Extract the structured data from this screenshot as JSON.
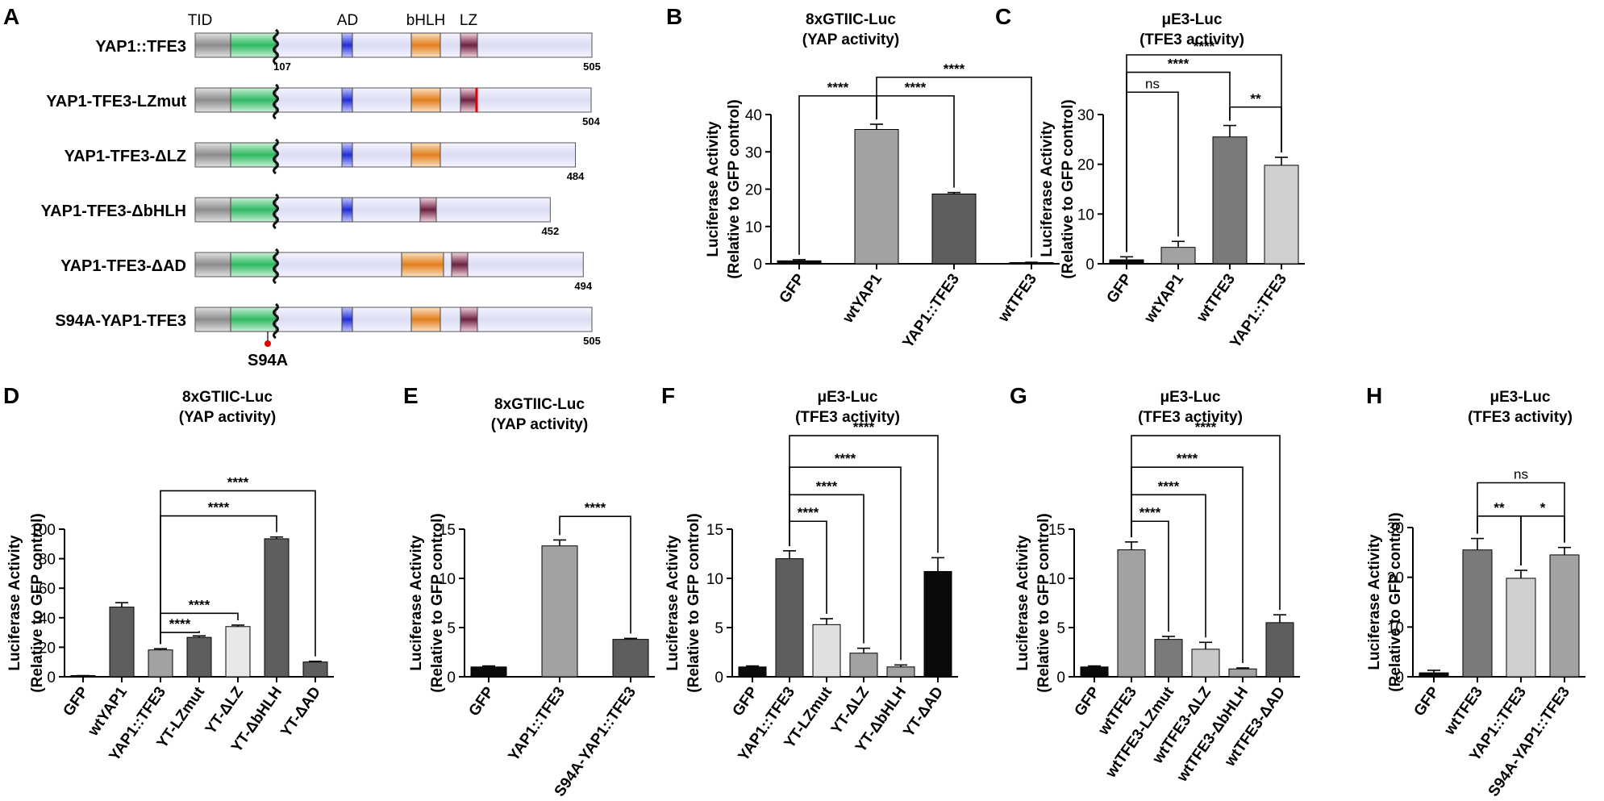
{
  "domain_areas": [
    {
      "name": "TID",
      "color": "#3cc06a"
    },
    {
      "name": "AD",
      "color": "#2a36d8"
    },
    {
      "name": "bHLH",
      "color": "#e08a2c"
    },
    {
      "name": "LZ",
      "color": "#7a2a4a"
    }
  ],
  "constructs_panel": {
    "letter": "A",
    "domain_headers": [
      "TID",
      "AD",
      "bHLH",
      "LZ"
    ],
    "mutation_label": "S94A",
    "breakpoint_label": "107",
    "constructs": [
      {
        "name": "YAP1::TFE3",
        "length": 505,
        "domains": [
          "TID",
          "AD",
          "bHLH",
          "LZ"
        ],
        "lz_mutated": false
      },
      {
        "name": "YAP1-TFE3-LZmut",
        "length": 504,
        "domains": [
          "TID",
          "AD",
          "bHLH",
          "LZ"
        ],
        "lz_mutated": true
      },
      {
        "name": "YAP1-TFE3-ΔLZ",
        "length": 484,
        "domains": [
          "TID",
          "AD",
          "bHLH"
        ],
        "lz_mutated": false
      },
      {
        "name": "YAP1-TFE3-ΔbHLH",
        "length": 452,
        "domains": [
          "TID",
          "AD",
          "LZ"
        ],
        "lz_mutated": false
      },
      {
        "name": "YAP1-TFE3-ΔAD",
        "length": 494,
        "domains": [
          "TID",
          "bHLH",
          "LZ"
        ],
        "lz_mutated": false
      },
      {
        "name": "S94A-YAP1-TFE3",
        "length": 505,
        "domains": [
          "TID",
          "AD",
          "bHLH",
          "LZ"
        ],
        "lz_mutated": false
      }
    ]
  },
  "chart_data": [
    {
      "id": "B",
      "letter": "B",
      "type": "bar",
      "title": [
        "8xGTIIC-Luc",
        "(YAP activity)"
      ],
      "ylabel": [
        "Luciferase Activity",
        "(Relative to GFP control)"
      ],
      "ylim": [
        0,
        40
      ],
      "yticks": [
        0,
        10,
        20,
        30,
        40
      ],
      "categories": [
        "GFP",
        "wtYAP1",
        "YAP1::TFE3",
        "wtTFE3"
      ],
      "values": [
        0.8,
        36.0,
        18.7,
        0.3
      ],
      "errors": [
        0.3,
        1.4,
        0.4,
        0.1
      ],
      "colors": [
        "#0a0a0a",
        "#a2a2a2",
        "#5e5e5e",
        "#0a0a0a"
      ],
      "significance": [
        {
          "from": 1,
          "to": 2,
          "label": "****",
          "y": 45
        },
        {
          "from": 0,
          "to": 1,
          "label": "****",
          "y": 45
        },
        {
          "from": 1,
          "to": 3,
          "label": "****",
          "y": 50
        }
      ]
    },
    {
      "id": "C",
      "letter": "C",
      "type": "bar",
      "title": [
        "μE3-Luc",
        "(TFE3 activity)"
      ],
      "ylabel": [
        "Luciferase Activity",
        "(Relative to GFP control)"
      ],
      "ylim": [
        0,
        30
      ],
      "yticks": [
        0,
        10,
        20,
        30
      ],
      "categories": [
        "GFP",
        "wtYAP1",
        "wtTFE3",
        "YAP1::TFE3"
      ],
      "values": [
        0.8,
        3.3,
        25.5,
        19.8
      ],
      "errors": [
        0.6,
        1.2,
        2.3,
        1.6
      ],
      "colors": [
        "#0a0a0a",
        "#a2a2a2",
        "#7a7a7a",
        "#cfcfcf"
      ],
      "significance": [
        {
          "from": 2,
          "to": 3,
          "label": "**",
          "y": 31.5
        },
        {
          "from": 0,
          "to": 1,
          "label": "ns",
          "y": 34.5
        },
        {
          "from": 0,
          "to": 2,
          "label": "****",
          "y": 38.5
        },
        {
          "from": 0,
          "to": 3,
          "label": "****",
          "y": 42
        }
      ]
    },
    {
      "id": "D",
      "letter": "D",
      "type": "bar",
      "title": [
        "8xGTIIC-Luc",
        "(YAP activity)"
      ],
      "ylabel": [
        "Luciferase Activity",
        "(Relative to GFP control)"
      ],
      "ylim": [
        0,
        100
      ],
      "yticks": [
        0,
        20,
        40,
        60,
        80,
        100
      ],
      "categories": [
        "GFP",
        "wtYAP1",
        "YAP1::TFE3",
        "YT-LZmut",
        "YT-ΔLZ",
        "YT-ΔbHLH",
        "YT-ΔAD"
      ],
      "values": [
        0.5,
        47.2,
        18.2,
        26.7,
        34.0,
        93.5,
        10.0
      ],
      "errors": [
        0.3,
        3.0,
        0.8,
        1.0,
        1.0,
        1.2,
        0.5
      ],
      "colors": [
        "#0a0a0a",
        "#5e5e5e",
        "#a2a2a2",
        "#5e5e5e",
        "#e8e8e8",
        "#5e5e5e",
        "#5e5e5e"
      ],
      "significance": [
        {
          "from": 2,
          "to": 3,
          "label": "****",
          "y": 30
        },
        {
          "from": 2,
          "to": 4,
          "label": "****",
          "y": 43
        },
        {
          "from": 2,
          "to": 5,
          "label": "****",
          "y": 109
        },
        {
          "from": 2,
          "to": 6,
          "label": "****",
          "y": 126
        }
      ]
    },
    {
      "id": "E",
      "letter": "E",
      "type": "bar",
      "title": [
        "8xGTIIC-Luc",
        "(YAP activity)"
      ],
      "ylabel": [
        "Luciferase Activity",
        "(Relative to GFP control)"
      ],
      "ylim": [
        0,
        15
      ],
      "yticks": [
        0,
        5,
        10,
        15
      ],
      "categories": [
        "GFP",
        "YAP1::TFE3",
        "S94A-YAP1::TFE3"
      ],
      "values": [
        1.0,
        13.3,
        3.8
      ],
      "errors": [
        0.1,
        0.6,
        0.1
      ],
      "colors": [
        "#0a0a0a",
        "#a2a2a2",
        "#5e5e5e"
      ],
      "significance": [
        {
          "from": 1,
          "to": 2,
          "label": "****",
          "y": 16.3
        }
      ]
    },
    {
      "id": "F",
      "letter": "F",
      "type": "bar",
      "title": [
        "μE3-Luc",
        "(TFE3 activity)"
      ],
      "ylabel": [
        "Luciferase Activity",
        "(Relative to GFP control)"
      ],
      "ylim": [
        0,
        15
      ],
      "yticks": [
        0,
        5,
        10,
        15
      ],
      "categories": [
        "GFP",
        "YAP1::TFE3",
        "YT-LZmut",
        "YT-ΔLZ",
        "YT-ΔbHLH",
        "YT-ΔAD"
      ],
      "values": [
        1.0,
        12.0,
        5.3,
        2.4,
        1.0,
        10.7
      ],
      "errors": [
        0.1,
        0.8,
        0.6,
        0.5,
        0.2,
        1.4
      ],
      "colors": [
        "#0a0a0a",
        "#5e5e5e",
        "#e0e0e0",
        "#a2a2a2",
        "#a2a2a2",
        "#0a0a0a"
      ],
      "significance": [
        {
          "from": 1,
          "to": 2,
          "label": "****",
          "y": 15.8
        },
        {
          "from": 1,
          "to": 3,
          "label": "****",
          "y": 18.5
        },
        {
          "from": 1,
          "to": 4,
          "label": "****",
          "y": 21.3
        },
        {
          "from": 1,
          "to": 5,
          "label": "****",
          "y": 24.5
        }
      ]
    },
    {
      "id": "G",
      "letter": "G",
      "type": "bar",
      "title": [
        "μE3-Luc",
        "(TFE3 activity)"
      ],
      "ylabel": [
        "Luciferase Activity",
        "(Relative to GFP control)"
      ],
      "ylim": [
        0,
        15
      ],
      "yticks": [
        0,
        5,
        10,
        15
      ],
      "categories": [
        "GFP",
        "wtTFE3",
        "wtTFE3-LZmut",
        "wtTFE3-ΔLZ",
        "wtTFE3-ΔbHLH",
        "wtTFE3-ΔAD"
      ],
      "values": [
        1.0,
        12.9,
        3.8,
        2.8,
        0.8,
        5.5
      ],
      "errors": [
        0.1,
        0.8,
        0.3,
        0.7,
        0.1,
        0.8
      ],
      "colors": [
        "#0a0a0a",
        "#a2a2a2",
        "#7a7a7a",
        "#c8c8c8",
        "#a2a2a2",
        "#5e5e5e"
      ],
      "significance": [
        {
          "from": 1,
          "to": 2,
          "label": "****",
          "y": 15.8
        },
        {
          "from": 1,
          "to": 3,
          "label": "****",
          "y": 18.5
        },
        {
          "from": 1,
          "to": 4,
          "label": "****",
          "y": 21.3
        },
        {
          "from": 1,
          "to": 5,
          "label": "****",
          "y": 24.5
        }
      ]
    },
    {
      "id": "H",
      "letter": "H",
      "type": "bar",
      "title": [
        "μE3-Luc",
        "(TFE3 activity)"
      ],
      "ylabel": [
        "Luciferase Activity",
        "(Relative to GFP control)"
      ],
      "ylim": [
        0,
        30
      ],
      "yticks": [
        0,
        10,
        20,
        30
      ],
      "categories": [
        "GFP",
        "wtTFE3",
        "YAP1::TFE3",
        "S94A-YAP1::TFE3"
      ],
      "values": [
        0.8,
        25.5,
        19.8,
        24.5
      ],
      "errors": [
        0.5,
        2.3,
        1.6,
        1.5
      ],
      "colors": [
        "#0a0a0a",
        "#7a7a7a",
        "#cfcfcf",
        "#a2a2a2"
      ],
      "significance": [
        {
          "from": 1,
          "to": 2,
          "label": "**",
          "y": 32.3
        },
        {
          "from": 2,
          "to": 3,
          "label": "*",
          "y": 32.3
        },
        {
          "from": 1,
          "to": 3,
          "label": "ns",
          "y": 39
        }
      ]
    }
  ]
}
